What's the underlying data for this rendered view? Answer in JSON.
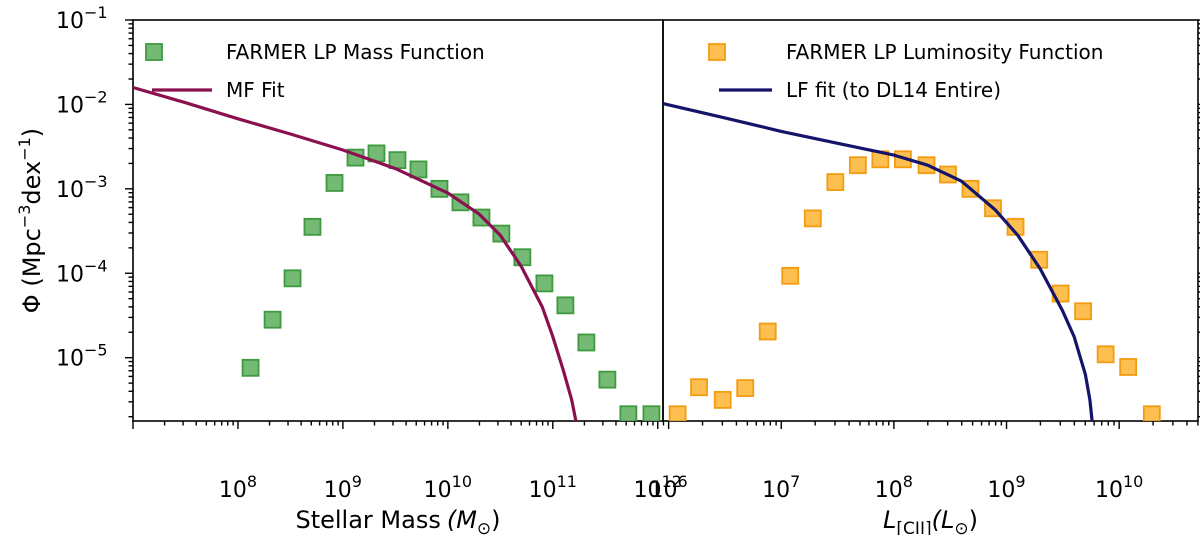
{
  "chart_data": [
    {
      "type": "scatter",
      "panel": "left",
      "xscale": "log",
      "yscale": "log",
      "xlim_log10": [
        7.0,
        12.05
      ],
      "ylim_log10": [
        -5.75,
        -1.0
      ],
      "xlabel": "Stellar Mass",
      "xlabel_unit": "(M",
      "xlabel_unit_sub": "⊙",
      "xlabel_unit_close": ")",
      "ylabel": "Φ (Mpc",
      "ylabel_sup1": "−3",
      "ylabel_mid": "dex",
      "ylabel_sup2": "−1",
      "ylabel_close": ")",
      "x_ticks": [
        {
          "exp": 8,
          "base": "10",
          "sup": "8"
        },
        {
          "exp": 9,
          "base": "10",
          "sup": "9"
        },
        {
          "exp": 10,
          "base": "10",
          "sup": "10"
        },
        {
          "exp": 11,
          "base": "10",
          "sup": "11"
        },
        {
          "exp": 12,
          "base": "10",
          "sup": "12"
        }
      ],
      "y_ticks": [
        {
          "exp": -1,
          "base": "10",
          "sup": "−1"
        },
        {
          "exp": -2,
          "base": "10",
          "sup": "−2"
        },
        {
          "exp": -3,
          "base": "10",
          "sup": "−3"
        },
        {
          "exp": -4,
          "base": "10",
          "sup": "−4"
        },
        {
          "exp": -5,
          "base": "10",
          "sup": "−5"
        }
      ],
      "legend_position": "top-left",
      "series": [
        {
          "name": "FARMER LP Mass Function",
          "kind": "points",
          "color": "#5cae5c",
          "edge": "#3e9a3e",
          "points": [
            [
              8.12,
              -5.12
            ],
            [
              8.33,
              -4.55
            ],
            [
              8.52,
              -4.06
            ],
            [
              8.71,
              -3.45
            ],
            [
              8.92,
              -2.93
            ],
            [
              9.12,
              -2.63
            ],
            [
              9.32,
              -2.58
            ],
            [
              9.52,
              -2.66
            ],
            [
              9.72,
              -2.77
            ],
            [
              9.92,
              -3.0
            ],
            [
              10.12,
              -3.16
            ],
            [
              10.32,
              -3.34
            ],
            [
              10.51,
              -3.53
            ],
            [
              10.71,
              -3.81
            ],
            [
              10.92,
              -4.12
            ],
            [
              11.12,
              -4.38
            ],
            [
              11.32,
              -4.82
            ],
            [
              11.52,
              -5.26
            ],
            [
              11.72,
              -5.67
            ],
            [
              11.94,
              -5.67
            ]
          ]
        },
        {
          "name": "MF Fit",
          "kind": "line",
          "color": "#8b1050",
          "points": [
            [
              7.0,
              -1.8
            ],
            [
              7.5,
              -1.98
            ],
            [
              8.0,
              -2.17
            ],
            [
              8.5,
              -2.35
            ],
            [
              9.0,
              -2.54
            ],
            [
              9.5,
              -2.76
            ],
            [
              10.0,
              -3.05
            ],
            [
              10.3,
              -3.3
            ],
            [
              10.5,
              -3.55
            ],
            [
              10.7,
              -3.92
            ],
            [
              10.9,
              -4.4
            ],
            [
              11.0,
              -4.75
            ],
            [
              11.1,
              -5.15
            ],
            [
              11.18,
              -5.5
            ],
            [
              11.22,
              -5.75
            ]
          ]
        }
      ]
    },
    {
      "type": "scatter",
      "panel": "right",
      "xscale": "log",
      "yscale": "log",
      "xlim_log10": [
        5.95,
        10.7
      ],
      "ylim_log10": [
        -5.75,
        -1.0
      ],
      "xlabel": "L",
      "xlabel_sub": "[CII]",
      "xlabel_unit": "(L",
      "xlabel_unit_sub": "⊙",
      "xlabel_unit_close": ")",
      "x_ticks": [
        {
          "exp": 6,
          "base": "10",
          "sup": "6"
        },
        {
          "exp": 7,
          "base": "10",
          "sup": "7"
        },
        {
          "exp": 8,
          "base": "10",
          "sup": "8"
        },
        {
          "exp": 9,
          "base": "10",
          "sup": "9"
        },
        {
          "exp": 10,
          "base": "10",
          "sup": "10"
        }
      ],
      "legend_position": "top-right",
      "series": [
        {
          "name": "FARMER LP Luminosity Function",
          "kind": "points",
          "color": "#fbb431",
          "edge": "#f39c12",
          "points": [
            [
              6.08,
              -5.67
            ],
            [
              6.27,
              -5.35
            ],
            [
              6.48,
              -5.5
            ],
            [
              6.68,
              -5.36
            ],
            [
              6.88,
              -4.69
            ],
            [
              7.08,
              -4.03
            ],
            [
              7.28,
              -3.35
            ],
            [
              7.48,
              -2.92
            ],
            [
              7.68,
              -2.72
            ],
            [
              7.88,
              -2.65
            ],
            [
              8.08,
              -2.65
            ],
            [
              8.29,
              -2.72
            ],
            [
              8.48,
              -2.83
            ],
            [
              8.68,
              -3.0
            ],
            [
              8.88,
              -3.23
            ],
            [
              9.08,
              -3.45
            ],
            [
              9.29,
              -3.84
            ],
            [
              9.48,
              -4.24
            ],
            [
              9.68,
              -4.45
            ],
            [
              9.88,
              -4.96
            ],
            [
              10.08,
              -5.11
            ],
            [
              10.29,
              -5.67
            ]
          ]
        },
        {
          "name": "LF fit (to DL14 Entire)",
          "kind": "line",
          "color": "#14146a",
          "points": [
            [
              5.95,
              -1.99
            ],
            [
              6.5,
              -2.16
            ],
            [
              7.0,
              -2.32
            ],
            [
              7.5,
              -2.46
            ],
            [
              8.0,
              -2.6
            ],
            [
              8.3,
              -2.72
            ],
            [
              8.6,
              -2.91
            ],
            [
              8.9,
              -3.25
            ],
            [
              9.1,
              -3.55
            ],
            [
              9.3,
              -3.95
            ],
            [
              9.5,
              -4.45
            ],
            [
              9.6,
              -4.75
            ],
            [
              9.7,
              -5.2
            ],
            [
              9.74,
              -5.5
            ],
            [
              9.76,
              -5.75
            ]
          ]
        }
      ]
    }
  ]
}
